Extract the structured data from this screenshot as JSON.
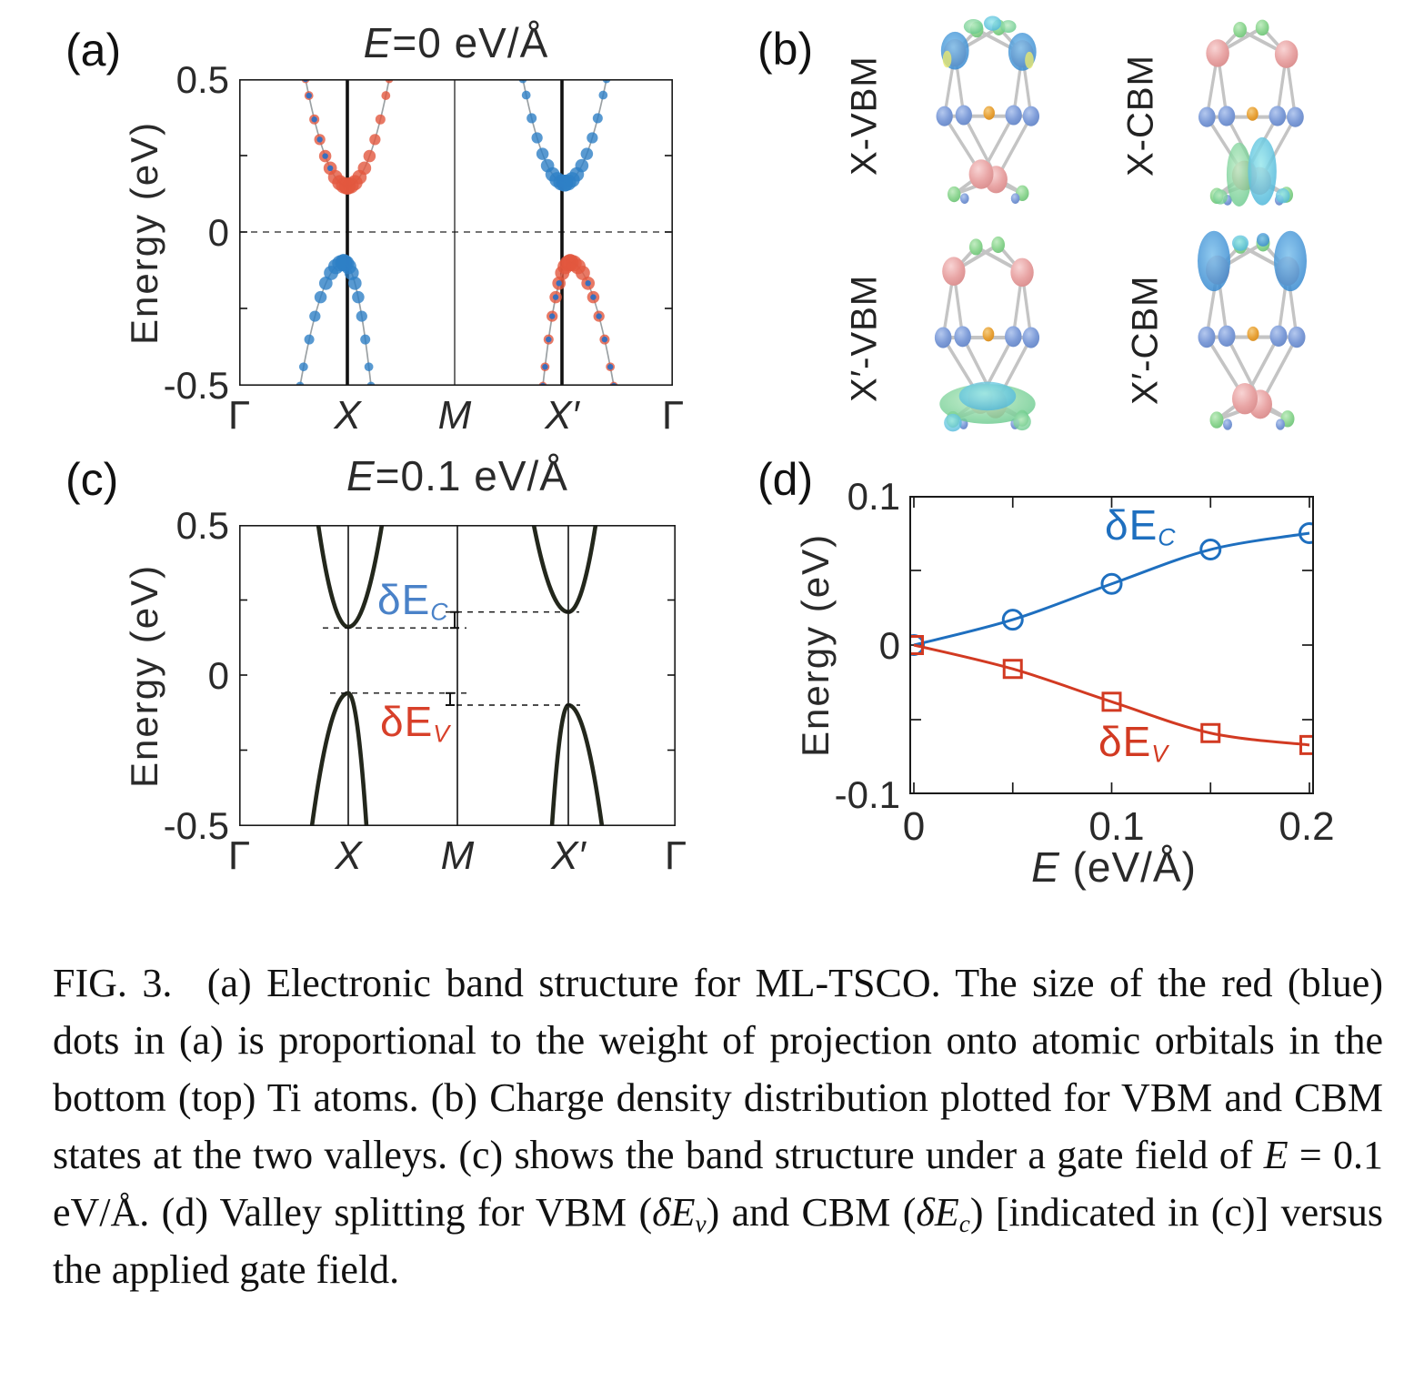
{
  "panels": {
    "a": {
      "tag": "(a)",
      "title": [
        {
          "t": "E",
          "i": 1
        },
        {
          "t": "=0 eV/Å"
        }
      ],
      "ylabel": "Energy  (eV)",
      "yticks": [
        "0.5",
        "0",
        "-0.5"
      ],
      "xticks": [
        "Γ",
        "X",
        "M",
        "X′",
        "Γ"
      ]
    },
    "b": {
      "tag": "(b)",
      "labels": [
        "X-VBM",
        "X-CBM",
        "X′-VBM",
        "X′-CBM"
      ]
    },
    "c": {
      "tag": "(c)",
      "title": [
        {
          "t": "E",
          "i": 1
        },
        {
          "t": "=0.1 eV/Å"
        }
      ],
      "ylabel": "Energy  (eV)",
      "yticks": [
        "0.5",
        "0",
        "-0.5"
      ],
      "xticks": [
        "Γ",
        "X",
        "M",
        "X′",
        "Γ"
      ],
      "annotations": {
        "dEc": {
          "label": "δE",
          "sub": "C",
          "color": "#4a82c8"
        },
        "dEv": {
          "label": "δE",
          "sub": "V",
          "color": "#d8402a"
        }
      }
    },
    "d": {
      "tag": "(d)",
      "ylabel": "Energy  (eV)",
      "xlabel": [
        {
          "t": "E",
          "i": 1
        },
        {
          "t": "  (eV/Å)"
        }
      ],
      "yticks": [
        "0.1",
        "0",
        "-0.1"
      ],
      "xticks": [
        "0",
        "0.1",
        "0.2"
      ],
      "series_labels": {
        "dEc": {
          "label": "δE",
          "sub": "C",
          "color": "#1e6fbf"
        },
        "dEv": {
          "label": "δE",
          "sub": "V",
          "color": "#d23a22"
        }
      }
    }
  },
  "chart_data": [
    {
      "id": "a",
      "type": "line",
      "title": "E=0 eV/Å",
      "ylabel": "Energy (eV)",
      "ylim": [
        -0.5,
        0.5
      ],
      "yticks": [
        0.5,
        0.25,
        0,
        -0.25,
        -0.5
      ],
      "kpath": [
        "Γ",
        "X",
        "M",
        "X'",
        "Γ"
      ],
      "fermi_level": 0,
      "bands": [
        {
          "valley": "X",
          "band": "CBM",
          "E": 0.15,
          "dot_color": "#e2573e"
        },
        {
          "valley": "X'",
          "band": "CBM",
          "E": 0.16,
          "dot_color": "#2e7fc6"
        },
        {
          "valley": "X",
          "band": "VBM",
          "E": -0.1,
          "dot_color": "#2e7fc6"
        },
        {
          "valley": "X'",
          "band": "VBM",
          "E": -0.1,
          "dot_color": "#e2573e"
        }
      ]
    },
    {
      "id": "c",
      "type": "line",
      "title": "E=0.1 eV/Å",
      "ylabel": "Energy (eV)",
      "ylim": [
        -0.5,
        0.5
      ],
      "yticks": [
        0.5,
        0.25,
        0,
        -0.25,
        -0.5
      ],
      "kpath": [
        "Γ",
        "X",
        "M",
        "X'",
        "Γ"
      ],
      "line_color": "#23271c",
      "bands": [
        {
          "valley": "X",
          "band": "CBM",
          "E": 0.16
        },
        {
          "valley": "X'",
          "band": "CBM",
          "E": 0.21
        },
        {
          "valley": "X",
          "band": "VBM",
          "E": -0.06
        },
        {
          "valley": "X'",
          "band": "VBM",
          "E": -0.1
        }
      ]
    },
    {
      "id": "d",
      "type": "line",
      "x": [
        0,
        0.05,
        0.1,
        0.15,
        0.2
      ],
      "series": [
        {
          "name": "δEc",
          "marker": "circle",
          "color": "#1e6fbf",
          "values": [
            0,
            0.017,
            0.041,
            0.064,
            0.075
          ]
        },
        {
          "name": "δEv",
          "marker": "square",
          "color": "#d23a22",
          "values": [
            0,
            -0.016,
            -0.038,
            -0.059,
            -0.067
          ]
        }
      ],
      "xlabel": "E (eV/Å)",
      "ylabel": "Energy (eV)",
      "xlim": [
        0,
        0.2
      ],
      "ylim": [
        -0.1,
        0.1
      ],
      "xticks": [
        0,
        0.05,
        0.1,
        0.15,
        0.2
      ],
      "yticks": [
        0.1,
        0.05,
        0,
        -0.05,
        -0.1
      ],
      "legend_position": "inline-labels"
    }
  ],
  "caption": {
    "segments": [
      {
        "t": "FIG. 3.  (a) Electronic band structure for ML-TSCO. The size of the red (blue) dots in (a) is proportional to the weight of projection onto atomic orbitals in the bottom (top) Ti atoms. (b) Charge density distribution plotted for VBM and CBM states at the two valleys. (c) shows the band structure under a gate field of "
      },
      {
        "t": "E",
        "i": 1
      },
      {
        "t": " = 0.1 eV/Å. (d) Valley splitting for VBM ("
      },
      {
        "t": "δE",
        "i": 1
      },
      {
        "t": "v",
        "i": 1,
        "sub": 1
      },
      {
        "t": ") and CBM ("
      },
      {
        "t": "δE",
        "i": 1
      },
      {
        "t": "c",
        "i": 1,
        "sub": 1
      },
      {
        "t": ") [indicated in (c)] versus the applied gate field."
      }
    ]
  }
}
